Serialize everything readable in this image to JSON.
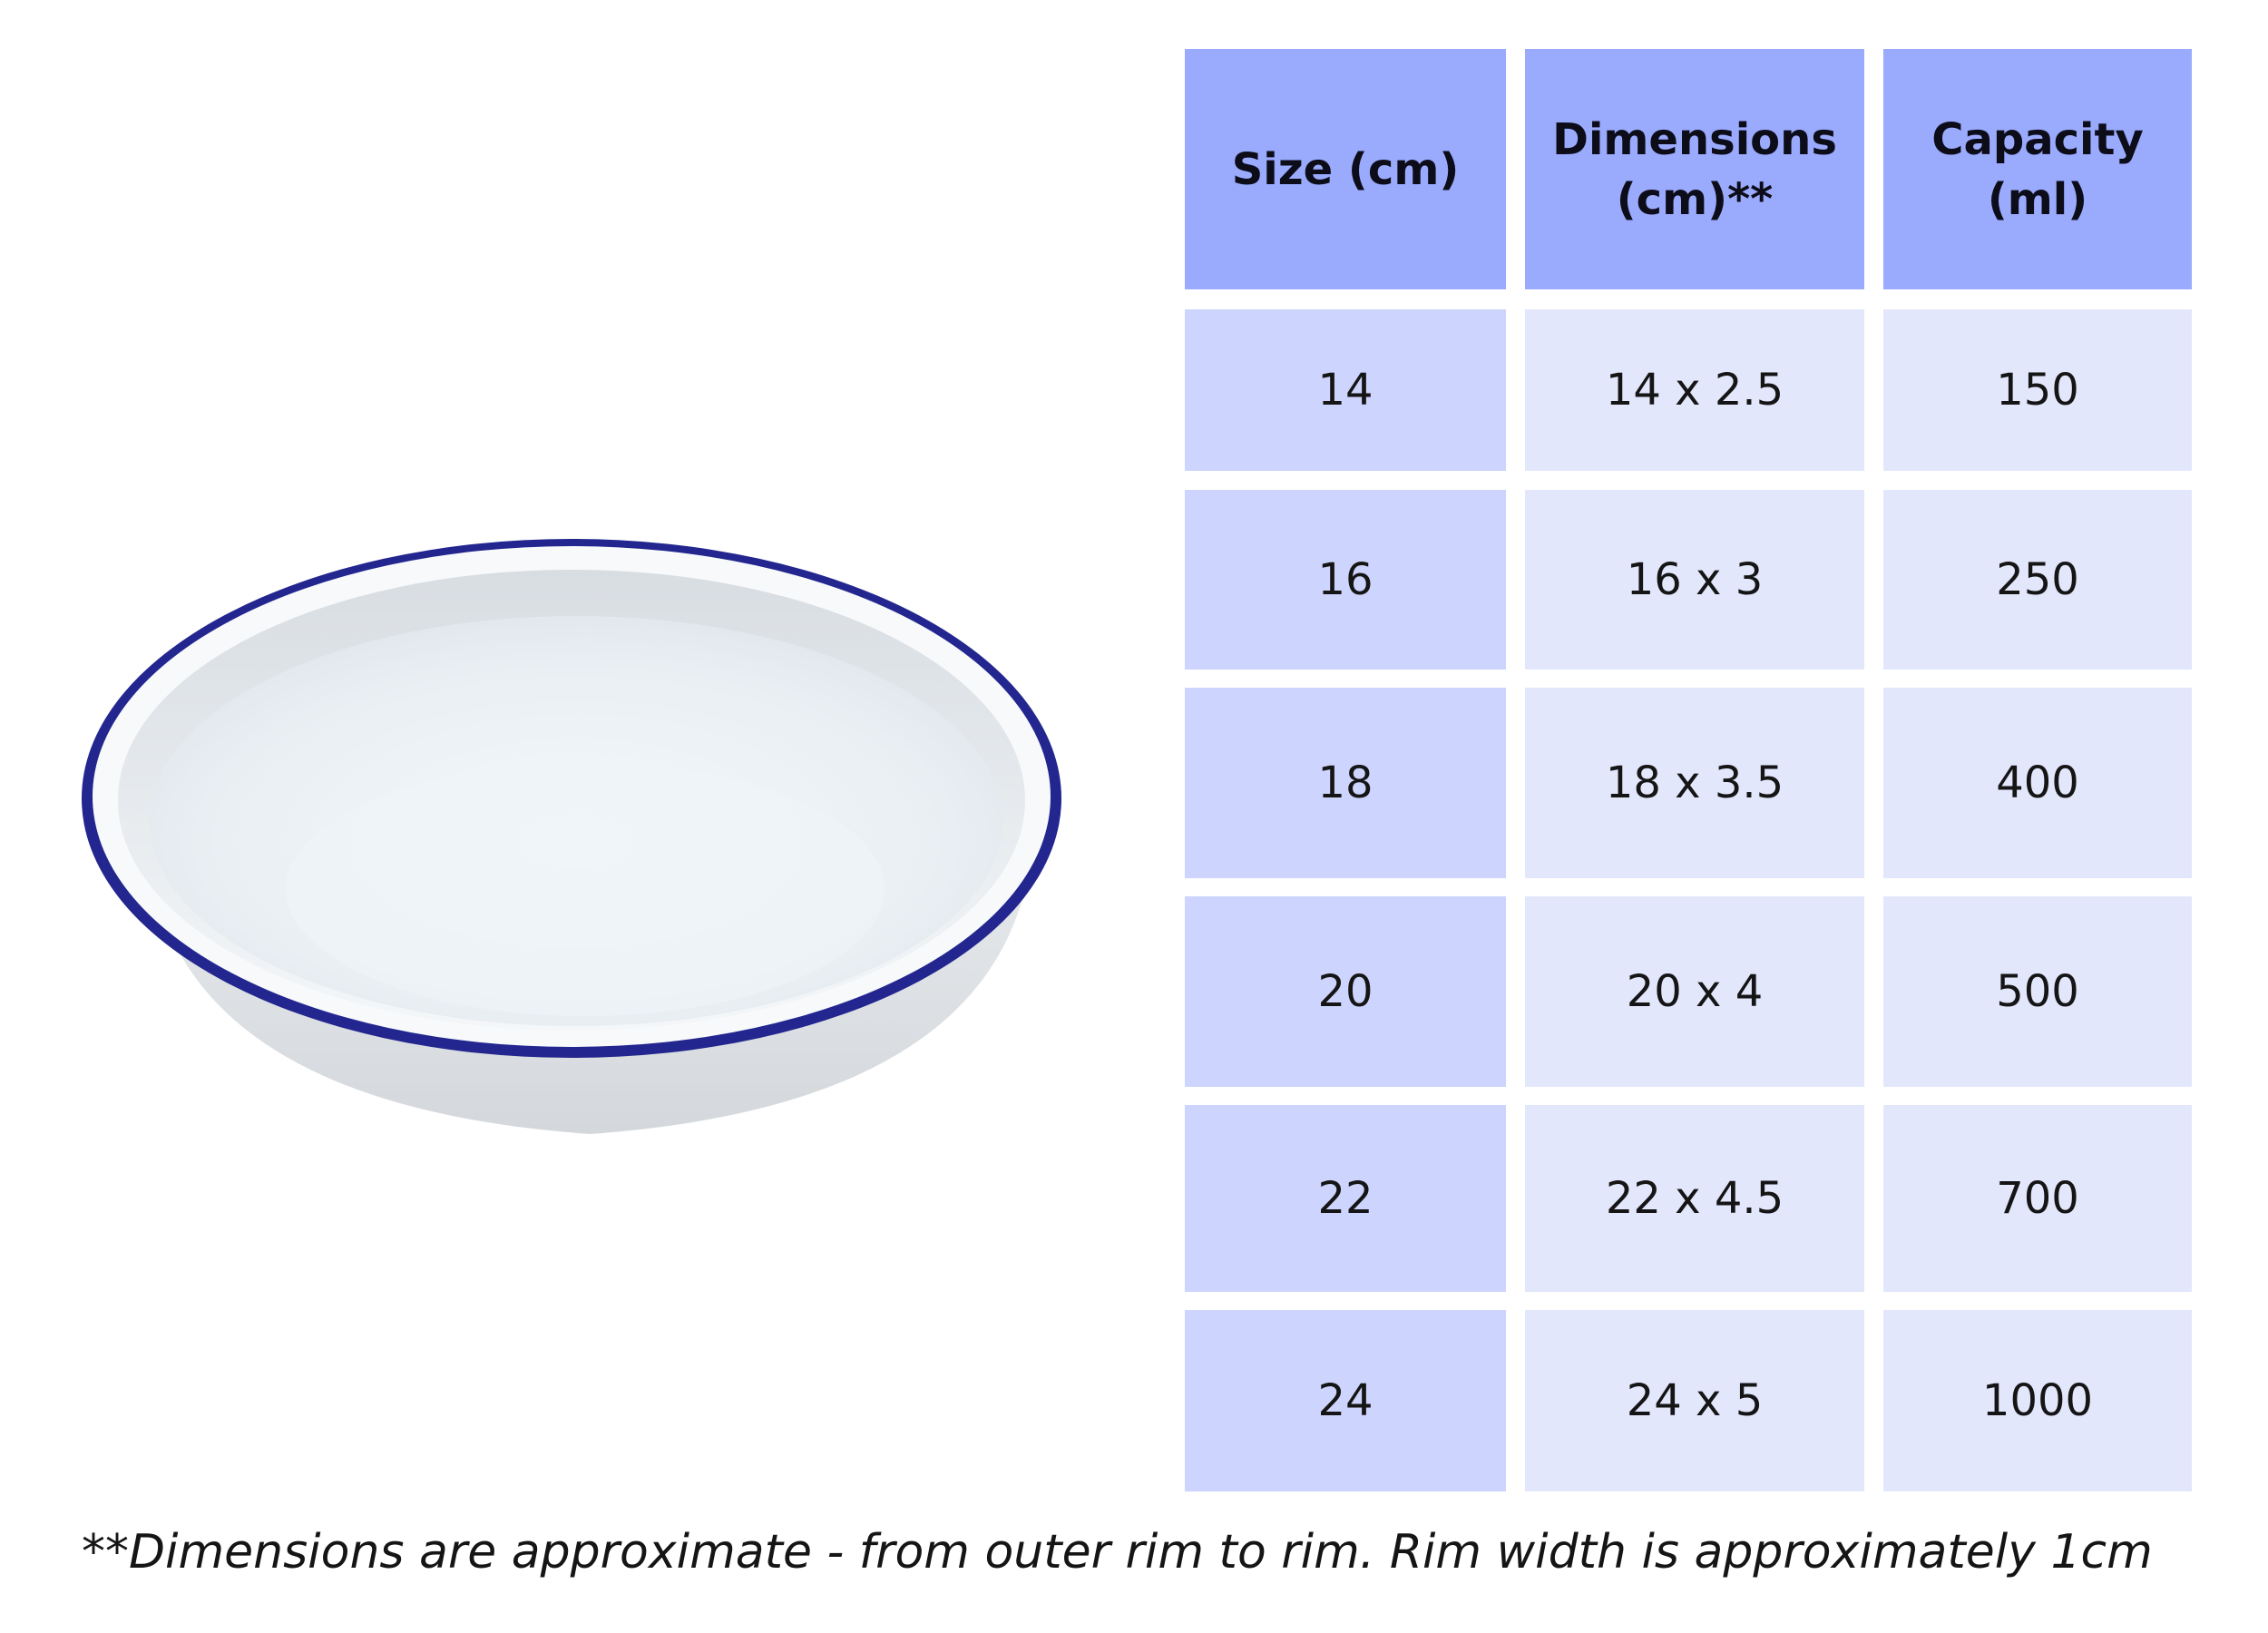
{
  "product": {
    "image_name": "enamel-pie-dish",
    "rim_color": "#22268e"
  },
  "table": {
    "headers": {
      "size": "Size (cm)",
      "dimensions_line1": "Dimensions",
      "dimensions_line2": "(cm)**",
      "capacity_line1": "Capacity",
      "capacity_line2": "(ml)"
    },
    "rows": [
      {
        "size": "14",
        "dimensions": "14 x 2.5",
        "capacity": "150"
      },
      {
        "size": "16",
        "dimensions": "16 x 3",
        "capacity": "250"
      },
      {
        "size": "18",
        "dimensions": "18 x 3.5",
        "capacity": "400"
      },
      {
        "size": "20",
        "dimensions": "20 x 4",
        "capacity": "500"
      },
      {
        "size": "22",
        "dimensions": "22 x 4.5",
        "capacity": "700"
      },
      {
        "size": "24",
        "dimensions": "24 x 5",
        "capacity": "1000"
      }
    ],
    "colors": {
      "header": "#9aaafd",
      "first_column": "#cdd4fd",
      "other_columns": "#e3e7fc"
    }
  },
  "footnote": "**Dimensions are approximate - from outer rim to rim. Rim width is approximately 1cm"
}
